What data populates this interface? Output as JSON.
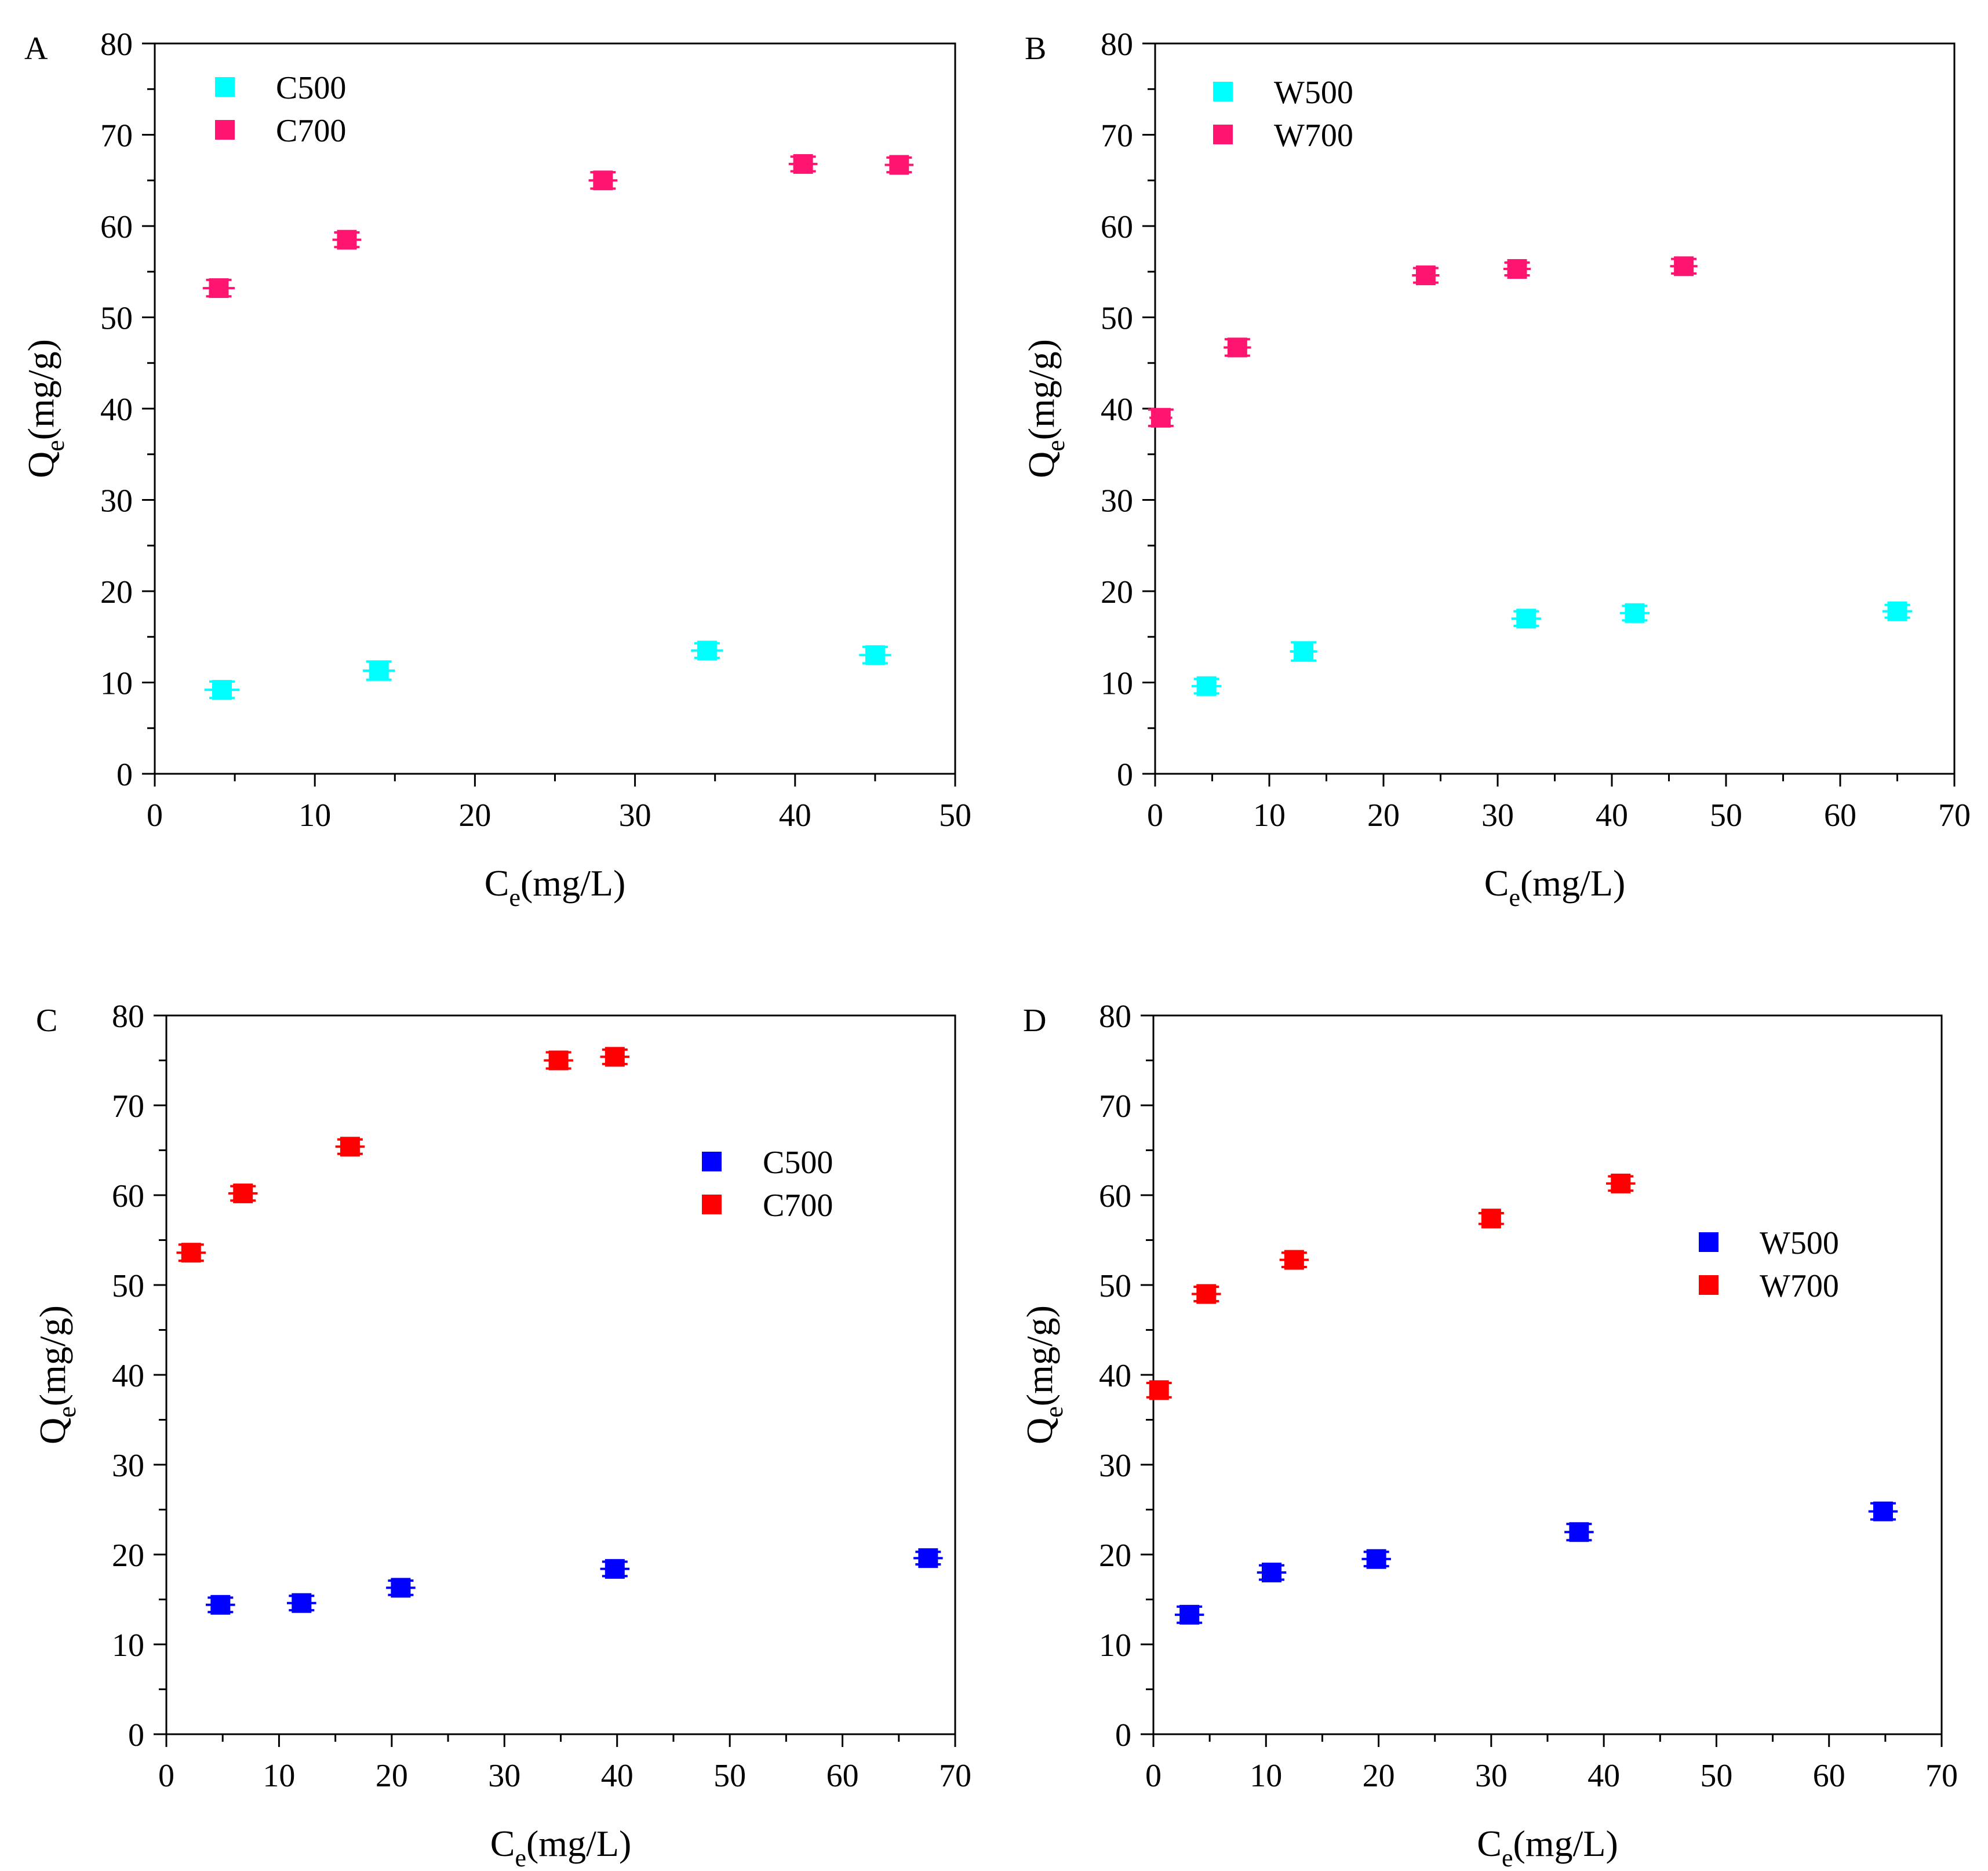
{
  "chart_data": [
    {
      "type": "scatter",
      "panel_label": "A",
      "xlabel": "Ce(mg/L)",
      "xlabel_main": "C",
      "xlabel_sub": "e",
      "xlabel_unit": "(mg/L)",
      "ylabel": "Qe(mg/g)",
      "ylabel_main": "Q",
      "ylabel_sub": "e",
      "ylabel_unit": "(mg/g)",
      "xlim": [
        0,
        50
      ],
      "ylim": [
        0,
        80
      ],
      "xticks": [
        0,
        10,
        20,
        30,
        40,
        50
      ],
      "yticks": [
        0,
        10,
        20,
        30,
        40,
        50,
        60,
        70,
        80
      ],
      "legend_position": "top-left",
      "series": [
        {
          "name": "C500",
          "color": "#00FFFF",
          "x": [
            4.2,
            14.0,
            34.5,
            45.0
          ],
          "y": [
            9.2,
            11.3,
            13.5,
            13.0
          ],
          "yerr": [
            0.9,
            1.0,
            0.8,
            0.9
          ],
          "xerr": [
            1.1,
            1.0,
            1.0,
            1.0
          ]
        },
        {
          "name": "C700",
          "color": "#FF1470",
          "x": [
            4.0,
            12.0,
            28.0,
            40.5,
            46.5
          ],
          "y": [
            53.2,
            58.5,
            65.0,
            66.8,
            66.7
          ],
          "yerr": [
            0.9,
            0.8,
            0.9,
            0.8,
            0.8
          ],
          "xerr": [
            1.0,
            0.9,
            0.9,
            0.9,
            0.9
          ]
        }
      ]
    },
    {
      "type": "scatter",
      "panel_label": "B",
      "xlabel": "Ce(mg/L)",
      "xlabel_main": "C",
      "xlabel_sub": "e",
      "xlabel_unit": "(mg/L)",
      "ylabel": "Qe(mg/g)",
      "ylabel_main": "Q",
      "ylabel_sub": "e",
      "ylabel_unit": "(mg/g)",
      "xlim": [
        0,
        70
      ],
      "ylim": [
        0,
        80
      ],
      "xticks": [
        0,
        10,
        20,
        30,
        40,
        50,
        60,
        70
      ],
      "yticks": [
        0,
        10,
        20,
        30,
        40,
        50,
        60,
        70,
        80
      ],
      "legend_position": "top-left",
      "series": [
        {
          "name": "W500",
          "color": "#00FFFF",
          "x": [
            4.5,
            13.0,
            32.5,
            42.0,
            65.0
          ],
          "y": [
            9.6,
            13.4,
            17.0,
            17.6,
            17.8
          ],
          "yerr": [
            0.8,
            1.0,
            0.8,
            0.8,
            0.7
          ],
          "xerr": [
            1.3,
            1.2,
            1.3,
            1.3,
            1.3
          ]
        },
        {
          "name": "W700",
          "color": "#FF1470",
          "x": [
            0.5,
            7.2,
            23.7,
            31.7,
            46.3
          ],
          "y": [
            39.0,
            46.7,
            54.6,
            55.3,
            55.6
          ],
          "yerr": [
            0.9,
            0.9,
            0.8,
            0.7,
            0.8
          ],
          "xerr": [
            1.0,
            1.2,
            1.2,
            1.2,
            1.2
          ]
        }
      ]
    },
    {
      "type": "scatter",
      "panel_label": "C",
      "xlabel": "Ce(mg/L)",
      "xlabel_main": "C",
      "xlabel_sub": "e",
      "xlabel_unit": "(mg/L)",
      "ylabel": "Qe(mg/g)",
      "ylabel_main": "Q",
      "ylabel_sub": "e",
      "ylabel_unit": "(mg/g)",
      "xlim": [
        0,
        70
      ],
      "ylim": [
        0,
        80
      ],
      "xticks": [
        0,
        10,
        20,
        30,
        40,
        50,
        60,
        70
      ],
      "yticks": [
        0,
        10,
        20,
        30,
        40,
        50,
        60,
        70,
        80
      ],
      "legend_position": "right",
      "series": [
        {
          "name": "C500",
          "color": "#0000FF",
          "x": [
            4.8,
            12.0,
            20.8,
            39.8,
            67.6
          ],
          "y": [
            14.4,
            14.6,
            16.3,
            18.4,
            19.6
          ],
          "yerr": [
            0.8,
            0.8,
            0.8,
            0.8,
            0.7
          ],
          "xerr": [
            1.3,
            1.3,
            1.3,
            1.3,
            1.3
          ]
        },
        {
          "name": "C700",
          "color": "#FF0000",
          "x": [
            2.2,
            6.8,
            16.3,
            34.8,
            39.8
          ],
          "y": [
            53.6,
            60.2,
            65.4,
            75.0,
            75.4
          ],
          "yerr": [
            0.9,
            0.8,
            0.8,
            0.9,
            0.8
          ],
          "xerr": [
            1.3,
            1.3,
            1.3,
            1.3,
            1.3
          ]
        }
      ]
    },
    {
      "type": "scatter",
      "panel_label": "D",
      "xlabel": "Ce(mg/L)",
      "xlabel_main": "C",
      "xlabel_sub": "e",
      "xlabel_unit": "(mg/L)",
      "ylabel": "Qe(mg/g)",
      "ylabel_main": "Q",
      "ylabel_sub": "e",
      "ylabel_unit": "(mg/g)",
      "xlim": [
        0,
        70
      ],
      "ylim": [
        0,
        80
      ],
      "xticks": [
        0,
        10,
        20,
        30,
        40,
        50,
        60,
        70
      ],
      "yticks": [
        0,
        10,
        20,
        30,
        40,
        50,
        60,
        70,
        80
      ],
      "legend_position": "right",
      "series": [
        {
          "name": "W500",
          "color": "#0000FF",
          "x": [
            3.2,
            10.5,
            19.8,
            37.8,
            64.8
          ],
          "y": [
            13.3,
            18.0,
            19.5,
            22.5,
            24.8
          ],
          "yerr": [
            0.9,
            0.8,
            0.8,
            0.9,
            0.9
          ],
          "xerr": [
            1.3,
            1.3,
            1.3,
            1.3,
            1.3
          ]
        },
        {
          "name": "W700",
          "color": "#FF0000",
          "x": [
            0.5,
            4.7,
            12.5,
            30.0,
            41.5
          ],
          "y": [
            38.3,
            49.0,
            52.8,
            57.4,
            61.3
          ],
          "yerr": [
            0.8,
            0.8,
            0.8,
            0.6,
            0.8
          ],
          "xerr": [
            0.0,
            1.3,
            1.3,
            0.0,
            1.3
          ]
        }
      ]
    }
  ]
}
